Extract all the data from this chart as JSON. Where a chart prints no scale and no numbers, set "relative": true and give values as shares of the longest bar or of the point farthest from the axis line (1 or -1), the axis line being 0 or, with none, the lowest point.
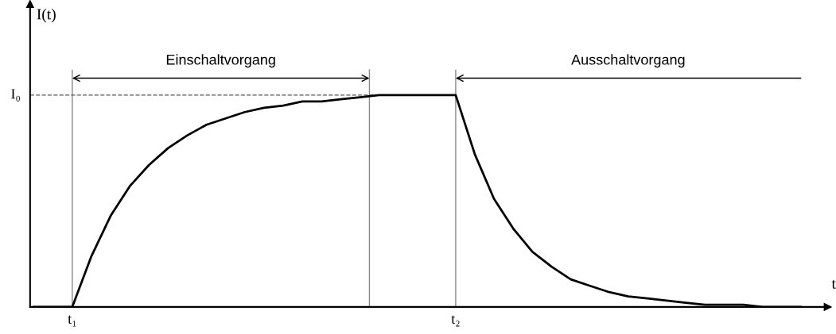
{
  "chart_data": {
    "type": "line",
    "relative": true,
    "xlabel": "t",
    "ylabel": "I(t)",
    "categories": [
      null,
      null,
      "t₁",
      null,
      null,
      null,
      null,
      null,
      null,
      null,
      null,
      null,
      null,
      null,
      null,
      null,
      null,
      null,
      null,
      null,
      null,
      null,
      "t₂",
      null,
      null,
      null,
      null,
      null,
      null,
      null,
      null,
      null,
      null,
      null,
      null,
      null,
      null,
      null,
      null,
      null,
      null
    ],
    "series": [
      {
        "color": "#000000",
        "values": [
          0,
          0,
          0,
          0.24,
          0.43,
          0.57,
          0.67,
          0.75,
          0.81,
          0.86,
          0.89,
          0.92,
          0.94,
          0.95,
          0.97,
          0.97,
          0.98,
          0.99,
          1,
          1,
          1,
          1,
          1,
          0.72,
          0.51,
          0.37,
          0.26,
          0.19,
          0.13,
          0.1,
          0.07,
          0.05,
          0.04,
          0.03,
          0.02,
          0.01,
          0.01,
          0.01,
          0,
          0,
          0
        ]
      }
    ],
    "ref_lines": [
      {
        "axis": "y",
        "value": 1,
        "label": "I₀",
        "line_style": "dashed",
        "color": "#555555"
      }
    ],
    "annotations": [
      "Einschaltvorgang",
      "Ausschaltvorgang"
    ],
    "grid": "x",
    "legend": false,
    "marker": "none",
    "line_style": "solid"
  }
}
